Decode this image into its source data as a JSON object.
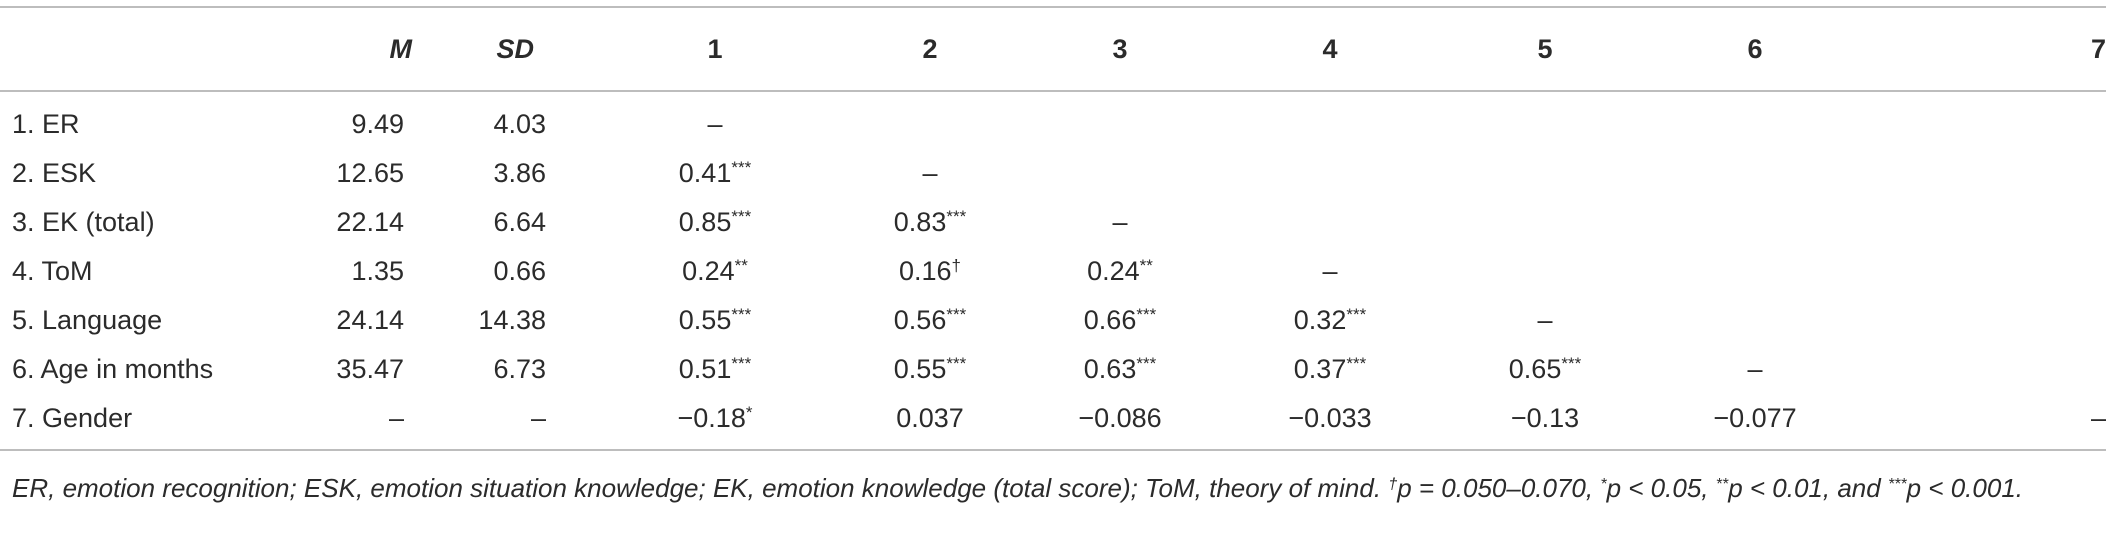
{
  "headers": [
    "",
    "M",
    "SD",
    "1",
    "2",
    "3",
    "4",
    "5",
    "6",
    "7"
  ],
  "rows": [
    {
      "label": "1. ER",
      "m": "9.49",
      "sd": "4.03",
      "cells": [
        [
          "–",
          ""
        ],
        [
          "",
          ""
        ],
        [
          "",
          ""
        ],
        [
          "",
          ""
        ],
        [
          "",
          ""
        ],
        [
          "",
          ""
        ],
        [
          "",
          ""
        ]
      ]
    },
    {
      "label": "2. ESK",
      "m": "12.65",
      "sd": "3.86",
      "cells": [
        [
          "0.41",
          "***"
        ],
        [
          "–",
          ""
        ],
        [
          "",
          ""
        ],
        [
          "",
          ""
        ],
        [
          "",
          ""
        ],
        [
          "",
          ""
        ],
        [
          "",
          ""
        ]
      ]
    },
    {
      "label": "3. EK (total)",
      "m": "22.14",
      "sd": "6.64",
      "cells": [
        [
          "0.85",
          "***"
        ],
        [
          "0.83",
          "***"
        ],
        [
          "–",
          ""
        ],
        [
          "",
          ""
        ],
        [
          "",
          ""
        ],
        [
          "",
          ""
        ],
        [
          "",
          ""
        ]
      ]
    },
    {
      "label": "4. ToM",
      "m": "1.35",
      "sd": "0.66",
      "cells": [
        [
          "0.24",
          "**"
        ],
        [
          "0.16",
          "†"
        ],
        [
          "0.24",
          "**"
        ],
        [
          "–",
          ""
        ],
        [
          "",
          ""
        ],
        [
          "",
          ""
        ],
        [
          "",
          ""
        ]
      ]
    },
    {
      "label": "5. Language",
      "m": "24.14",
      "sd": "14.38",
      "cells": [
        [
          "0.55",
          "***"
        ],
        [
          "0.56",
          "***"
        ],
        [
          "0.66",
          "***"
        ],
        [
          "0.32",
          "***"
        ],
        [
          "–",
          ""
        ],
        [
          "",
          ""
        ],
        [
          "",
          ""
        ]
      ]
    },
    {
      "label": "6. Age in months",
      "m": "35.47",
      "sd": "6.73",
      "cells": [
        [
          "0.51",
          "***"
        ],
        [
          "0.55",
          "***"
        ],
        [
          "0.63",
          "***"
        ],
        [
          "0.37",
          "***"
        ],
        [
          "0.65",
          "***"
        ],
        [
          "–",
          ""
        ],
        [
          "",
          ""
        ]
      ]
    },
    {
      "label": "7. Gender",
      "m": "–",
      "sd": "–",
      "cells": [
        [
          "−0.18",
          "*"
        ],
        [
          "0.037",
          ""
        ],
        [
          "−0.086",
          ""
        ],
        [
          "−0.033",
          ""
        ],
        [
          "−0.13",
          ""
        ],
        [
          "−0.077",
          ""
        ],
        [
          "–",
          ""
        ]
      ]
    }
  ],
  "note": {
    "text": "ER, emotion recognition; ESK, emotion situation knowledge; EK, emotion knowledge (total score); ToM, theory of mind. ",
    "dagger": "†",
    "p1": "p = 0.050–0.070, ",
    "s1": "*",
    "p2": "p < 0.05, ",
    "s2": "**",
    "p3": "p < 0.01, and ",
    "s3": "***",
    "p4": "p < 0.001."
  }
}
